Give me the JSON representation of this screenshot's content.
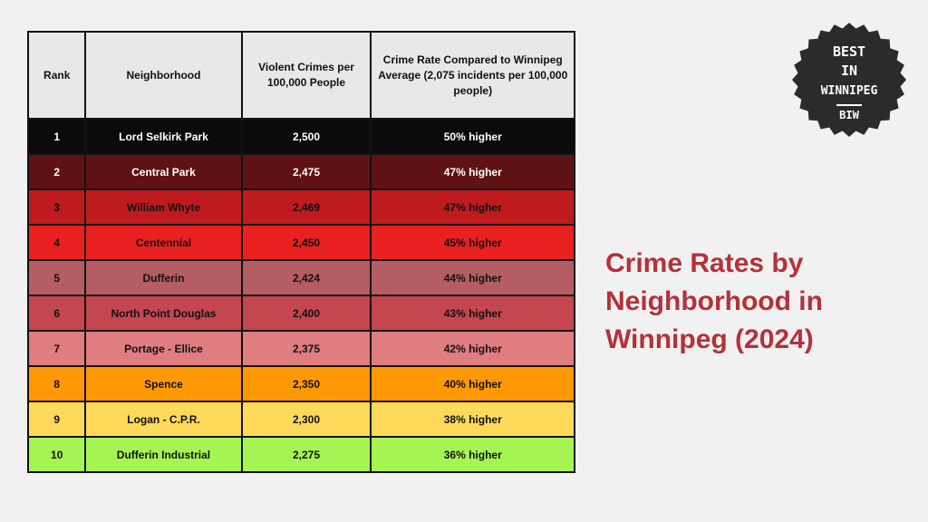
{
  "chart_data": {
    "type": "table",
    "headers": {
      "rank": "Rank",
      "neighborhood": "Neighborhood",
      "violent_crimes": "Violent Crimes per 100,000 People",
      "crime_rate": "Crime Rate Compared to Winnipeg Average (2,075 incidents per 100,000 people)"
    },
    "rows": [
      {
        "rank": "1",
        "neighborhood": "Lord Selkirk Park",
        "violent_crimes": "2,500",
        "crime_rate": "50% higher",
        "bg": "#0b0b0b",
        "fg": "#ffffff"
      },
      {
        "rank": "2",
        "neighborhood": "Central Park",
        "violent_crimes": "2,475",
        "crime_rate": "47% higher",
        "bg": "#5e1214",
        "fg": "#ffffff"
      },
      {
        "rank": "3",
        "neighborhood": "William Whyte",
        "violent_crimes": "2,469",
        "crime_rate": "47% higher",
        "bg": "#bf1b1e",
        "fg": "#111111"
      },
      {
        "rank": "4",
        "neighborhood": "Centennial",
        "violent_crimes": "2,450",
        "crime_rate": "45% higher",
        "bg": "#e8201f",
        "fg": "#111111"
      },
      {
        "rank": "5",
        "neighborhood": "Dufferin",
        "violent_crimes": "2,424",
        "crime_rate": "44% higher",
        "bg": "#b45d62",
        "fg": "#111111"
      },
      {
        "rank": "6",
        "neighborhood": "North Point Douglas",
        "violent_crimes": "2,400",
        "crime_rate": "43% higher",
        "bg": "#c34650",
        "fg": "#111111"
      },
      {
        "rank": "7",
        "neighborhood": "Portage - Ellice",
        "violent_crimes": "2,375",
        "crime_rate": "42% higher",
        "bg": "#e07d80",
        "fg": "#111111"
      },
      {
        "rank": "8",
        "neighborhood": "Spence",
        "violent_crimes": "2,350",
        "crime_rate": "40% higher",
        "bg": "#ff9805",
        "fg": "#111111"
      },
      {
        "rank": "9",
        "neighborhood": "Logan - C.P.R.",
        "violent_crimes": "2,300",
        "crime_rate": "38% higher",
        "bg": "#ffd95a",
        "fg": "#111111"
      },
      {
        "rank": "10",
        "neighborhood": "Dufferin Industrial",
        "violent_crimes": "2,275",
        "crime_rate": "36% higher",
        "bg": "#a5f552",
        "fg": "#111111"
      }
    ]
  },
  "title": {
    "line1": "Crime Rates by",
    "line2": "Neighborhood in",
    "line3": "Winnipeg (2024)",
    "color": "#b5303a"
  },
  "logo": {
    "line1": "BEST",
    "line2": "IN",
    "line3": "WINNIPEG",
    "abbr": "BIW"
  }
}
